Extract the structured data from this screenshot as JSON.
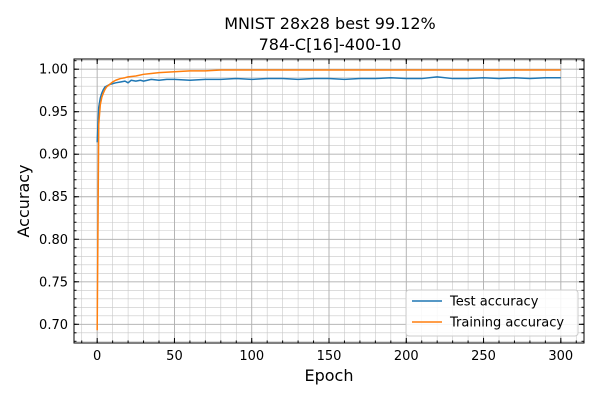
{
  "chart_data": {
    "type": "line",
    "title": "MNIST 28x28 best 99.12%",
    "subtitle": "784-C[16]-400-10",
    "xlabel": "Epoch",
    "ylabel": "Accuracy",
    "xlim": [
      -15,
      315
    ],
    "ylim": [
      0.678,
      1.012
    ],
    "xticks": [
      0,
      50,
      100,
      150,
      200,
      250,
      300
    ],
    "yticks": [
      0.7,
      0.75,
      0.8,
      0.85,
      0.9,
      0.95,
      1.0
    ],
    "x_minor_step": 10,
    "y_minor_step": 0.01,
    "grid": "major and minor",
    "legend_position": "lower-right",
    "series": [
      {
        "name": "Test accuracy",
        "color": "#1f77b4",
        "x": [
          0,
          1,
          2,
          3,
          4,
          5,
          6,
          8,
          10,
          12,
          15,
          18,
          20,
          22,
          25,
          28,
          30,
          35,
          40,
          45,
          50,
          60,
          70,
          80,
          90,
          100,
          110,
          120,
          130,
          140,
          150,
          160,
          170,
          180,
          190,
          200,
          210,
          220,
          230,
          240,
          250,
          260,
          270,
          280,
          290,
          300
        ],
        "y": [
          0.914,
          0.955,
          0.966,
          0.972,
          0.976,
          0.979,
          0.98,
          0.982,
          0.983,
          0.984,
          0.985,
          0.986,
          0.984,
          0.987,
          0.986,
          0.987,
          0.986,
          0.988,
          0.987,
          0.988,
          0.988,
          0.987,
          0.988,
          0.988,
          0.989,
          0.988,
          0.989,
          0.989,
          0.988,
          0.989,
          0.989,
          0.988,
          0.989,
          0.989,
          0.99,
          0.989,
          0.989,
          0.991,
          0.989,
          0.989,
          0.99,
          0.989,
          0.99,
          0.989,
          0.99,
          0.99
        ]
      },
      {
        "name": "Training accuracy",
        "color": "#ff7f0e",
        "x": [
          0,
          1,
          2,
          3,
          4,
          5,
          6,
          8,
          10,
          12,
          15,
          18,
          20,
          25,
          30,
          35,
          40,
          50,
          60,
          70,
          80,
          100,
          120,
          150,
          200,
          250,
          300
        ],
        "y": [
          0.693,
          0.935,
          0.958,
          0.967,
          0.972,
          0.976,
          0.979,
          0.982,
          0.985,
          0.987,
          0.989,
          0.99,
          0.991,
          0.992,
          0.994,
          0.995,
          0.996,
          0.997,
          0.998,
          0.998,
          0.999,
          0.999,
          0.999,
          0.999,
          0.999,
          0.999,
          0.999
        ]
      }
    ]
  }
}
